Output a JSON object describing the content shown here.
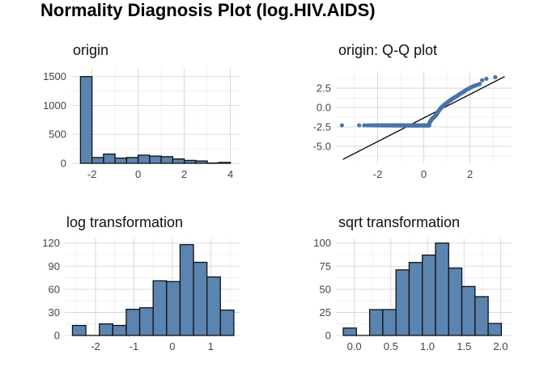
{
  "title": "Normality Diagnosis Plot (log.HIV.AIDS)",
  "chart_data": [
    {
      "type": "bar",
      "title": "origin",
      "xlabel": "",
      "ylabel": "",
      "bin_edges": [
        -2.5,
        -2.0,
        -1.5,
        -1.0,
        -0.5,
        0.0,
        0.5,
        1.0,
        1.5,
        2.0,
        2.5,
        3.0,
        3.5,
        4.0
      ],
      "values": [
        1500,
        100,
        160,
        90,
        100,
        140,
        125,
        115,
        75,
        50,
        40,
        5,
        15
      ],
      "xlim": [
        -2.9,
        4.4
      ],
      "ylim": [
        0,
        1650
      ],
      "xticks": [
        -2,
        0,
        2,
        4
      ],
      "yticks": [
        0,
        500,
        1000,
        1500
      ],
      "grid": true
    },
    {
      "type": "scatter",
      "title": "origin: Q-Q plot",
      "xlabel": "",
      "ylabel": "",
      "xlim": [
        -3.8,
        3.8
      ],
      "ylim": [
        -7.2,
        4.7
      ],
      "xticks": [
        -2,
        0,
        2
      ],
      "yticks": [
        -5.0,
        -2.5,
        0.0,
        2.5
      ],
      "ytick_labels": [
        "-5.0",
        "-2.5",
        "0.0",
        "2.5"
      ],
      "reference_line": {
        "x": [
          -3.5,
          3.5
        ],
        "y": [
          -6.7,
          4.0
        ]
      },
      "grid": true
    },
    {
      "type": "bar",
      "title": "log transformation",
      "xlabel": "",
      "ylabel": "",
      "bin_edges": [
        -2.6,
        -2.25,
        -1.9,
        -1.55,
        -1.2,
        -0.85,
        -0.5,
        -0.15,
        0.2,
        0.55,
        0.9,
        1.25,
        1.6
      ],
      "values": [
        13,
        0,
        15,
        13,
        34,
        36,
        71,
        70,
        118,
        95,
        76,
        33
      ],
      "xlim": [
        -2.8,
        1.75
      ],
      "ylim": [
        0,
        126
      ],
      "xticks": [
        -2,
        -1,
        0,
        1
      ],
      "yticks": [
        0,
        30,
        60,
        90,
        120
      ],
      "grid": true
    },
    {
      "type": "bar",
      "title": "sqrt transformation",
      "xlabel": "",
      "ylabel": "",
      "bin_edges": [
        -0.15,
        0.03,
        0.21,
        0.39,
        0.57,
        0.75,
        0.93,
        1.11,
        1.29,
        1.47,
        1.65,
        1.83,
        2.01
      ],
      "values": [
        8,
        0,
        28,
        28,
        71,
        79,
        87,
        100,
        73,
        53,
        42,
        13
      ],
      "xlim": [
        -0.25,
        2.15
      ],
      "ylim": [
        0,
        105
      ],
      "xticks": [
        0.0,
        0.5,
        1.0,
        1.5,
        2.0
      ],
      "xtick_labels": [
        "0.0",
        "0.5",
        "1.0",
        "1.5",
        "2.0"
      ],
      "yticks": [
        0,
        25,
        50,
        75,
        100
      ],
      "grid": true
    }
  ]
}
